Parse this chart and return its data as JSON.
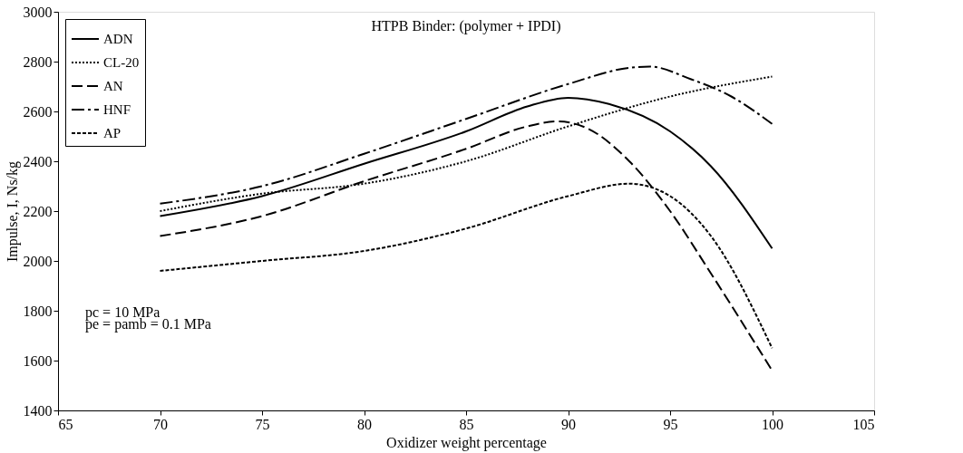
{
  "chart_data": {
    "type": "line",
    "title": "HTPB Binder: (polymer + IPDI)",
    "xlabel": "Oxidizer weight percentage",
    "ylabel": "Impulse, I, Ns/kg",
    "xlim": [
      65,
      105
    ],
    "xticks": [
      65,
      70,
      75,
      80,
      85,
      90,
      95,
      100,
      105
    ],
    "ylim": [
      1400,
      3000
    ],
    "yticks": [
      1400,
      1600,
      1800,
      2000,
      2200,
      2400,
      2600,
      2800,
      3000
    ],
    "grid": false,
    "legend": "top left",
    "marker": "none",
    "annotations": [
      "pc = 10 MPa",
      "pe = pamb = 0.1 MPa"
    ],
    "series": [
      {
        "name": "ADN",
        "color": "#000000",
        "line_style": "solid",
        "x": [
          70,
          75,
          80,
          85,
          88,
          90,
          92,
          95,
          97,
          100
        ],
        "values": [
          2180,
          2260,
          2390,
          2520,
          2620,
          2655,
          2630,
          2520,
          2380,
          2050
        ]
      },
      {
        "name": "CL-20",
        "color": "#000000",
        "line_style": "dotted",
        "x": [
          70,
          75,
          80,
          85,
          90,
          95,
          100
        ],
        "values": [
          2200,
          2270,
          2310,
          2400,
          2540,
          2660,
          2740
        ]
      },
      {
        "name": "AN",
        "color": "#000000",
        "line_style": "dashed",
        "x": [
          70,
          75,
          80,
          85,
          88,
          89.5,
          91,
          93,
          95,
          97,
          100
        ],
        "values": [
          2100,
          2180,
          2320,
          2450,
          2540,
          2560,
          2530,
          2400,
          2200,
          1950,
          1560
        ]
      },
      {
        "name": "HNF",
        "color": "#000000",
        "line_style": "dashdot",
        "x": [
          70,
          75,
          80,
          85,
          90,
          93,
          94,
          96,
          98,
          100
        ],
        "values": [
          2230,
          2300,
          2430,
          2570,
          2710,
          2775,
          2780,
          2730,
          2660,
          2550
        ]
      },
      {
        "name": "AP",
        "color": "#000000",
        "line_style": "shortdash",
        "x": [
          70,
          75,
          80,
          85,
          90,
          93,
          95,
          97,
          100
        ],
        "values": [
          1960,
          2000,
          2040,
          2130,
          2260,
          2310,
          2260,
          2100,
          1650
        ]
      }
    ]
  }
}
